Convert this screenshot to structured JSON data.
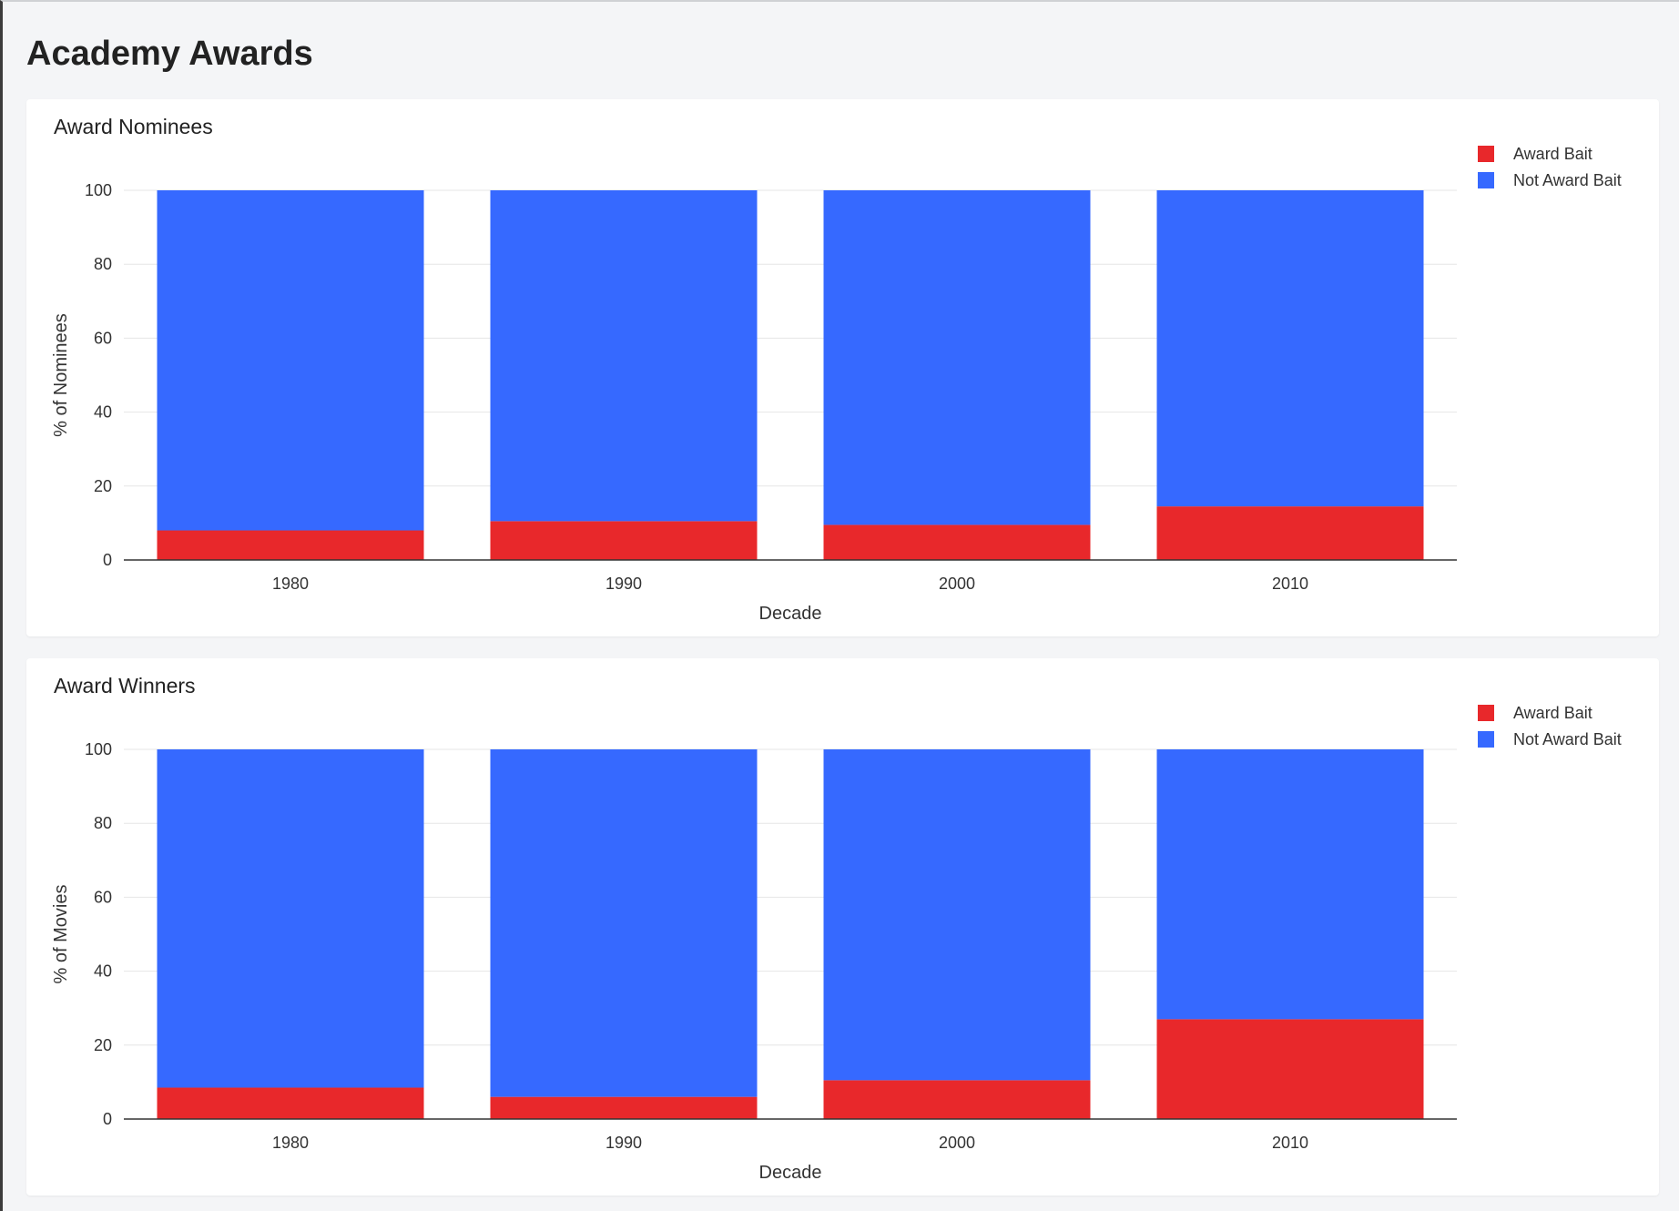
{
  "page": {
    "title": "Academy Awards"
  },
  "colors": {
    "award_bait": "#e8282b",
    "not_award_bait": "#3669ff",
    "gridline": "#e6e6e6",
    "axis": "#333333"
  },
  "chart_data": [
    {
      "type": "bar",
      "stacked": true,
      "title": "Award Nominees",
      "xlabel": "Decade",
      "ylabel": "% of Nominees",
      "ylim": [
        0,
        100
      ],
      "yticks": [
        0,
        20,
        40,
        60,
        80,
        100
      ],
      "grid": true,
      "legend_position": "top-right",
      "categories": [
        "1980",
        "1990",
        "2000",
        "2010"
      ],
      "series": [
        {
          "name": "Award Bait",
          "color": "#e8282b",
          "values": [
            8,
            10.5,
            9.5,
            14.5
          ]
        },
        {
          "name": "Not Award Bait",
          "color": "#3669ff",
          "values": [
            92,
            89.5,
            90.5,
            85.5
          ]
        }
      ]
    },
    {
      "type": "bar",
      "stacked": true,
      "title": "Award Winners",
      "xlabel": "Decade",
      "ylabel": "% of Movies",
      "ylim": [
        0,
        100
      ],
      "yticks": [
        0,
        20,
        40,
        60,
        80,
        100
      ],
      "grid": true,
      "legend_position": "top-right",
      "categories": [
        "1980",
        "1990",
        "2000",
        "2010"
      ],
      "series": [
        {
          "name": "Award Bait",
          "color": "#e8282b",
          "values": [
            8.5,
            6,
            10.5,
            27
          ]
        },
        {
          "name": "Not Award Bait",
          "color": "#3669ff",
          "values": [
            91.5,
            94,
            89.5,
            73
          ]
        }
      ]
    }
  ]
}
